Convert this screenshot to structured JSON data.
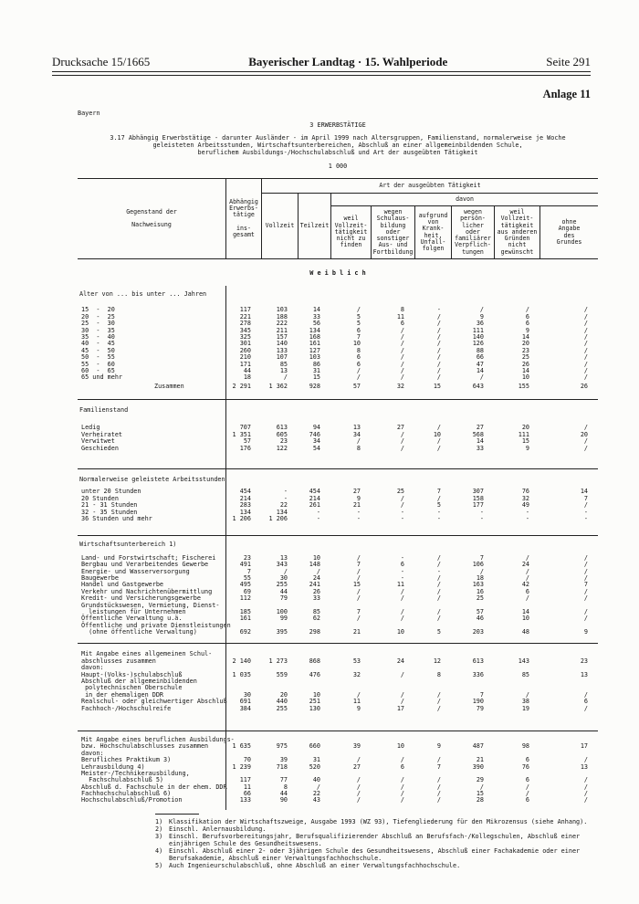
{
  "masthead": {
    "doc_number": "Drucksache 15/1665",
    "title": "Bayerischer Landtag · 15. Wahlperiode",
    "page_number": "Seite 291",
    "annex": "Anlage 11"
  },
  "page": {
    "region": "Bayern",
    "chapter": "3 ERWERBSTÄTIGE",
    "title": "3.17 Abhängig Erwerbstätige - darunter Ausländer - im April 1999 nach Altersgruppen, Familienstand, normalerweise je Woche\ngeleisteten Arbeitsstunden, Wirtschaftsunterbereichen, Abschluß an einer allgemeinbildenden Schule,\nberuflichem Ausbildungs-/Hochschulabschluß und Art der ausgeübten Tätigkeit",
    "unit": "1 000"
  },
  "table": {
    "gender_band": "W e i b l i c h",
    "header": {
      "stub": "Gegenstand der\n\nNachweisung",
      "total": "Abhängig\nErwerbs-\ntätige\n\nins-\ngesamt",
      "activity_span": "Art der ausgeübten Tätigkeit",
      "vollzeit": "Vollzeit",
      "teilzeit": "Teilzeit",
      "davon": "davon",
      "reasons": [
        "weil\nVollzeit-\ntätigkeit\nnicht zu\nfinden",
        "wegen\nSchulaus-\nbildung\noder\nsonstiger\nAus- und\nFortbildung",
        "aufgrund\nvon\nKrank-\nheit,\nUnfall-\nfolgen",
        "wegen\npersön-\nlicher\noder\nfamiliärer\nVerpflich-\ntungen",
        "weil\nVollzeit-\ntätigkeit\naus anderen\nGründen\nnicht\ngewünscht",
        "ohne\nAngabe\ndes\nGrundes"
      ]
    },
    "sections": [
      {
        "heading": "Alter von ... bis unter ... Jahren",
        "rows": [
          {
            "label": "15  -  20",
            "values": [
              "117",
              "103",
              "14",
              "/",
              "8",
              "-",
              "/",
              "/",
              "/"
            ]
          },
          {
            "label": "20  -  25",
            "values": [
              "221",
              "188",
              "33",
              "5",
              "11",
              "/",
              "9",
              "6",
              "/"
            ]
          },
          {
            "label": "25  -  30",
            "values": [
              "278",
              "222",
              "56",
              "5",
              "6",
              "/",
              "36",
              "6",
              "/"
            ]
          },
          {
            "label": "30  -  35",
            "values": [
              "345",
              "211",
              "134",
              "6",
              "/",
              "/",
              "111",
              "9",
              "/"
            ]
          },
          {
            "label": "35  -  40",
            "values": [
              "325",
              "157",
              "168",
              "7",
              "/",
              "/",
              "140",
              "14",
              "/"
            ]
          },
          {
            "label": "40  -  45",
            "values": [
              "301",
              "140",
              "161",
              "10",
              "/",
              "/",
              "126",
              "20",
              "/"
            ]
          },
          {
            "label": "45  -  50",
            "values": [
              "260",
              "133",
              "127",
              "8",
              "/",
              "/",
              "88",
              "23",
              "/"
            ]
          },
          {
            "label": "50  -  55",
            "values": [
              "210",
              "107",
              "103",
              "6",
              "/",
              "/",
              "66",
              "25",
              "/"
            ]
          },
          {
            "label": "55  -  60",
            "values": [
              "171",
              "85",
              "86",
              "6",
              "/",
              "/",
              "47",
              "26",
              "/"
            ]
          },
          {
            "label": "60  -  65",
            "values": [
              "44",
              "13",
              "31",
              "/",
              "/",
              "/",
              "14",
              "14",
              "/"
            ]
          },
          {
            "label": "65 und mehr",
            "values": [
              "18",
              "/",
              "15",
              "/",
              "/",
              "/",
              "/",
              "10",
              "/"
            ]
          },
          {
            "label": "Zusammen",
            "style": "sum",
            "values": [
              "2 291",
              "1 362",
              "928",
              "57",
              "32",
              "15",
              "643",
              "155",
              "26"
            ]
          }
        ]
      },
      {
        "heading": "Familienstand",
        "rows": [
          {
            "label": "Ledig",
            "values": [
              "707",
              "613",
              "94",
              "13",
              "27",
              "/",
              "27",
              "20",
              "/"
            ]
          },
          {
            "label": "Verheiratet",
            "values": [
              "1 351",
              "605",
              "746",
              "34",
              "/",
              "10",
              "568",
              "111",
              "20"
            ]
          },
          {
            "label": "Verwitwet",
            "values": [
              "57",
              "23",
              "34",
              "/",
              "/",
              "/",
              "14",
              "15",
              "/"
            ]
          },
          {
            "label": "Geschieden",
            "values": [
              "176",
              "122",
              "54",
              "8",
              "/",
              "/",
              "33",
              "9",
              "/"
            ]
          }
        ]
      },
      {
        "heading": "Normalerweise geleistete Arbeitsstunden",
        "rows": [
          {
            "label": "unter 20 Stunden",
            "values": [
              "454",
              "-",
              "454",
              "27",
              "25",
              "7",
              "307",
              "76",
              "14"
            ]
          },
          {
            "label": "20 Stunden",
            "values": [
              "214",
              "-",
              "214",
              "9",
              "/",
              "/",
              "158",
              "32",
              "7"
            ]
          },
          {
            "label": "21 - 31 Stunden",
            "values": [
              "283",
              "22",
              "261",
              "21",
              "/",
              "5",
              "177",
              "49",
              "/"
            ]
          },
          {
            "label": "32 - 35 Stunden",
            "values": [
              "134",
              "134",
              "-",
              "-",
              "-",
              "-",
              "-",
              "-",
              "-"
            ]
          },
          {
            "label": "36 Stunden und mehr",
            "values": [
              "1 206",
              "1 206",
              "-",
              "-",
              "-",
              "-",
              "-",
              "-",
              "-"
            ]
          }
        ]
      },
      {
        "heading": "Wirtschaftsunterbereich 1)",
        "rows": [
          {
            "label": "Land- und Forstwirtschaft; Fischerei",
            "values": [
              "23",
              "13",
              "10",
              "/",
              "-",
              "/",
              "7",
              "/",
              "/"
            ]
          },
          {
            "label": "Bergbau und Verarbeitendes Gewerbe",
            "values": [
              "491",
              "343",
              "148",
              "7",
              "6",
              "/",
              "106",
              "24",
              "/"
            ]
          },
          {
            "label": "Energie- und Wasserversorgung",
            "values": [
              "7",
              "/",
              "/",
              "/",
              "-",
              "-",
              "/",
              "/",
              "/"
            ]
          },
          {
            "label": "Baugewerbe",
            "values": [
              "55",
              "30",
              "24",
              "/",
              "-",
              "/",
              "18",
              "/",
              "/"
            ]
          },
          {
            "label": "Handel und Gastgewerbe",
            "values": [
              "495",
              "255",
              "241",
              "15",
              "11",
              "/",
              "163",
              "42",
              "7"
            ]
          },
          {
            "label": "Verkehr und Nachrichtenübermittlung",
            "values": [
              "69",
              "44",
              "26",
              "/",
              "/",
              "/",
              "16",
              "6",
              "/"
            ]
          },
          {
            "label": "Kredit- und Versicherungsgewerbe",
            "values": [
              "112",
              "79",
              "33",
              "/",
              "/",
              "/",
              "25",
              "/",
              "/"
            ]
          },
          {
            "pre": [
              "Grundstückswesen, Vermietung, Dienst-"
            ],
            "label": "  leistungen für Unternehmen",
            "values": [
              "185",
              "100",
              "85",
              "7",
              "/",
              "/",
              "57",
              "14",
              "/"
            ]
          },
          {
            "label": "Öffentliche Verwaltung u.ä.",
            "values": [
              "161",
              "99",
              "62",
              "/",
              "/",
              "/",
              "46",
              "10",
              "/"
            ]
          },
          {
            "pre": [
              "Öffentliche und private Dienstleistungen"
            ],
            "label": "  (ohne öffentliche Verwaltung)",
            "values": [
              "692",
              "395",
              "298",
              "21",
              "10",
              "5",
              "203",
              "48",
              "9"
            ]
          }
        ]
      },
      {
        "rows": [
          {
            "pre": [
              "Mit Angabe eines allgemeinen Schul-"
            ],
            "label": "abschlusses zusammen",
            "values": [
              "2 140",
              "1 273",
              "868",
              "53",
              "24",
              "12",
              "613",
              "143",
              "23"
            ]
          },
          {
            "label": "davon:",
            "values": []
          },
          {
            "label": "Haupt-(Volks-)schulabschluß",
            "values": [
              "1 035",
              "559",
              "476",
              "32",
              "/",
              "8",
              "336",
              "85",
              "13"
            ]
          },
          {
            "pre": [
              "Abschluß der allgemeinbildenden",
              " polytechnischen Oberschule"
            ],
            "label": " in der ehemaligen DDR",
            "values": [
              "30",
              "20",
              "10",
              "/",
              "/",
              "/",
              "7",
              "/",
              "/"
            ]
          },
          {
            "label": "Realschul- oder gleichwertiger Abschluß",
            "values": [
              "691",
              "440",
              "251",
              "11",
              "/",
              "/",
              "190",
              "38",
              "6"
            ]
          },
          {
            "label": "Fachhoch-/Hochschulreife",
            "values": [
              "384",
              "255",
              "130",
              "9",
              "17",
              "/",
              "79",
              "19",
              "/"
            ]
          }
        ]
      },
      {
        "rows": [
          {
            "pre": [
              "Mit Angabe eines beruflichen Ausbildungs-"
            ],
            "label": "bzw. Hochschulabschlusses zusammen",
            "values": [
              "1 635",
              "975",
              "660",
              "39",
              "10",
              "9",
              "487",
              "98",
              "17"
            ]
          },
          {
            "label": "davon:",
            "values": []
          },
          {
            "label": "Berufliches Praktikum 3)",
            "values": [
              "70",
              "39",
              "31",
              "/",
              "/",
              "/",
              "21",
              "6",
              "/"
            ]
          },
          {
            "label": "Lehrausbildung 4)",
            "values": [
              "1 239",
              "718",
              "520",
              "27",
              "6",
              "7",
              "390",
              "76",
              "13"
            ]
          },
          {
            "pre": [
              "Meister-/Technikerausbildung,"
            ],
            "label": "  Fachschulabschluß 5)",
            "values": [
              "117",
              "77",
              "40",
              "/",
              "/",
              "/",
              "29",
              "6",
              "/"
            ]
          },
          {
            "label": "Abschluß d. Fachschule in der ehem. DDR",
            "values": [
              "11",
              "8",
              "/",
              "/",
              "/",
              "/",
              "/",
              "/",
              "/"
            ]
          },
          {
            "label": "Fachhochschulabschluß 6)",
            "values": [
              "66",
              "44",
              "22",
              "/",
              "/",
              "/",
              "15",
              "/",
              "/"
            ]
          },
          {
            "label": "Hochschulabschluß/Promotion",
            "values": [
              "133",
              "90",
              "43",
              "/",
              "/",
              "/",
              "28",
              "6",
              "/"
            ]
          }
        ]
      }
    ]
  },
  "footnotes": [
    {
      "num": "1)",
      "text": "Klassifikation der Wirtschaftszweige, Ausgabe 1993 (WZ 93), Tiefengliederung für den Mikrozensus (siehe Anhang)."
    },
    {
      "num": "2)",
      "text": "Einschl. Anlernausbildung."
    },
    {
      "num": "3)",
      "text": "Einschl. Berufsvorbereitungsjahr, Berufsqualifizierender Abschluß an Berufsfach-/Kollegschulen, Abschluß einer\neinjährigen Schule des Gesundheitswesens."
    },
    {
      "num": "4)",
      "text": "Einschl. Abschluß einer 2- oder 3jährigen Schule des Gesundheitswesens, Abschluß einer Fachakademie oder einer\nBerufsakademie, Abschluß einer Verwaltungsfachhochschule."
    },
    {
      "num": "5)",
      "text": "Auch Ingenieurschulabschluß, ohne Abschluß an einer Verwaltungsfachhochschule."
    }
  ]
}
